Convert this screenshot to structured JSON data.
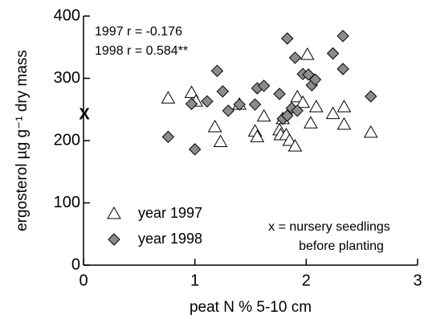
{
  "chart_data": {
    "type": "scatter",
    "xlabel": "peat N % 5-10 cm",
    "ylabel": "ergosterol µg g⁻¹ dry mass",
    "xlim": [
      0,
      3
    ],
    "ylim": [
      0,
      400
    ],
    "xticks": [
      0,
      1,
      2,
      3
    ],
    "yticks": [
      0,
      100,
      200,
      300,
      400
    ],
    "annotations": [
      "1997 r = -0.176",
      "1998 r = 0.584**",
      "x = nursery seedlings",
      "before planting"
    ],
    "nursery": {
      "label": "X",
      "x": 0,
      "y": 241
    },
    "legend": "lower left",
    "series": [
      {
        "name": "year 1997",
        "marker": "triangle",
        "color": "#ffffff",
        "x": [
          0.76,
          0.97,
          1.01,
          1.18,
          1.23,
          1.4,
          1.54,
          1.56,
          1.62,
          1.76,
          1.77,
          1.79,
          1.82,
          1.85,
          1.9,
          1.92,
          1.97,
          2.01,
          2.04,
          2.09,
          2.24,
          2.34,
          2.34,
          2.58
        ],
        "values": [
          268,
          277,
          263,
          222,
          198,
          258,
          215,
          206,
          239,
          217,
          209,
          235,
          209,
          200,
          191,
          270,
          261,
          338,
          228,
          254,
          243,
          254,
          226,
          213
        ]
      },
      {
        "name": "year 1998",
        "marker": "diamond",
        "color": "#8c8c8c",
        "x": [
          0.76,
          0.97,
          1.0,
          1.11,
          1.2,
          1.25,
          1.3,
          1.4,
          1.54,
          1.56,
          1.62,
          1.76,
          1.79,
          1.83,
          1.83,
          1.87,
          1.9,
          1.92,
          1.97,
          2.02,
          2.05,
          2.08,
          2.24,
          2.33,
          2.33,
          2.58
        ],
        "values": [
          206,
          259,
          186,
          263,
          312,
          279,
          248,
          258,
          258,
          284,
          288,
          275,
          235,
          364,
          240,
          252,
          333,
          248,
          307,
          306,
          289,
          298,
          340,
          368,
          315,
          271
        ]
      }
    ]
  }
}
